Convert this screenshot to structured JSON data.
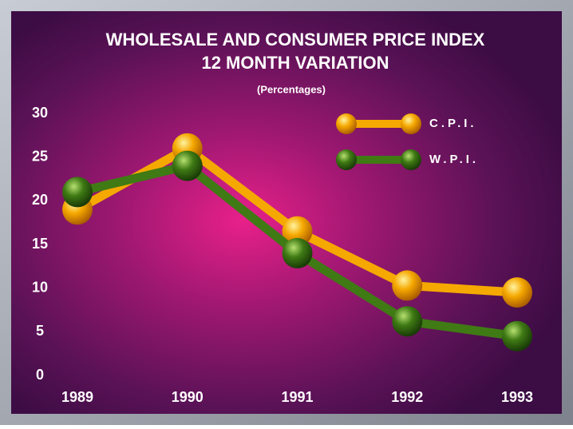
{
  "chart_data": {
    "type": "line",
    "title": [
      "WHOLESALE AND CONSUMER PRICE INDEX",
      "12 MONTH VARIATION"
    ],
    "subtitle": "(Percentages)",
    "categories": [
      "1989",
      "1990",
      "1991",
      "1992",
      "1993"
    ],
    "series": [
      {
        "name": "C.P.I.",
        "color": "#f5a800",
        "values": [
          19,
          26,
          16.5,
          10.3,
          9.5
        ]
      },
      {
        "name": "W.P.I.",
        "color": "#3f7a14",
        "values": [
          21,
          24,
          14,
          6.2,
          4.5
        ]
      }
    ],
    "ylim": [
      0,
      30
    ],
    "yticks": [
      0,
      5,
      10,
      15,
      20,
      25,
      30
    ],
    "grid": false,
    "legend": "top-right"
  }
}
